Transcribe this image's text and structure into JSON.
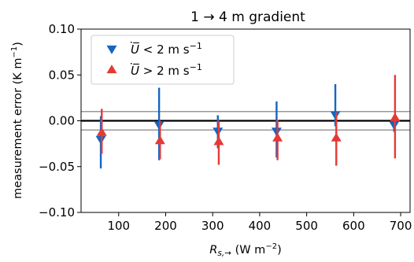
{
  "chart_data": {
    "type": "scatter",
    "title": "1 → 4 m gradient",
    "xlabel": "R_{s,→} (W m⁻²)",
    "ylabel": "measurement error (K m⁻¹)",
    "xlim": [
      20,
      720
    ],
    "ylim": [
      -0.1,
      0.1
    ],
    "xticks": [
      100,
      200,
      300,
      400,
      500,
      600,
      700
    ],
    "yticks": [
      -0.1,
      -0.05,
      0.0,
      0.05,
      0.1
    ],
    "xtick_labels": [
      "100",
      "200",
      "300",
      "400",
      "500",
      "600",
      "700"
    ],
    "ytick_labels": [
      "−0.10",
      "−0.05",
      "0.00",
      "0.05",
      "0.10"
    ],
    "reference_lines": [
      {
        "y": 0.0,
        "style": "thick"
      },
      {
        "y": 0.01,
        "style": "thin"
      },
      {
        "y": -0.01,
        "style": "thin"
      }
    ],
    "legend_position": "top-left",
    "series": [
      {
        "name": "U̅ < 2 m s⁻¹",
        "marker": "triangle-down",
        "color": "#1565c0",
        "x": [
          62,
          186,
          311,
          436,
          561,
          686
        ],
        "y": [
          -0.02,
          -0.004,
          -0.011,
          -0.011,
          0.007,
          -0.004
        ],
        "err_low": [
          -0.052,
          -0.043,
          -0.03,
          -0.04,
          -0.006,
          -0.012
        ],
        "err_high": [
          0.005,
          0.036,
          0.006,
          0.021,
          0.04,
          0.006
        ]
      },
      {
        "name": "U̅ > 2 m s⁻¹",
        "marker": "triangle-up",
        "color": "#e53935",
        "x": [
          64,
          188,
          313,
          438,
          563,
          688
        ],
        "y": [
          -0.013,
          -0.022,
          -0.023,
          -0.019,
          -0.019,
          0.003
        ],
        "err_low": [
          -0.036,
          -0.042,
          -0.048,
          -0.043,
          -0.049,
          -0.041
        ],
        "err_high": [
          0.013,
          0.0,
          0.0,
          0.001,
          0.009,
          0.05
        ]
      }
    ]
  }
}
